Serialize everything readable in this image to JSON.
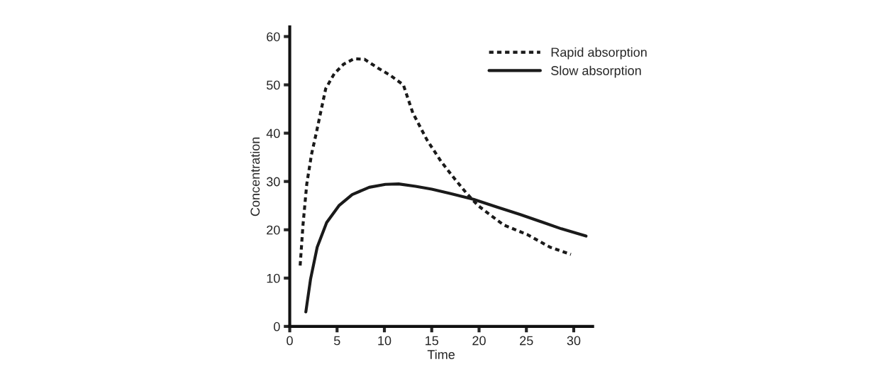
{
  "chart_data": {
    "type": "line",
    "xlabel": "Time",
    "ylabel": "Concentration",
    "xlim": [
      0,
      32
    ],
    "ylim": [
      0,
      62
    ],
    "xticks": [
      0,
      5,
      10,
      15,
      20,
      25,
      30
    ],
    "yticks": [
      0,
      10,
      20,
      30,
      40,
      50,
      60
    ],
    "grid": false,
    "legend": "top right",
    "marker": "none",
    "series": [
      {
        "name": "Rapid absorption",
        "color": "#1a1a1a",
        "line_style": "dotted",
        "x": [
          1.1,
          1.4,
          1.8,
          2.3,
          2.8,
          3.2,
          3.8,
          4.7,
          5.7,
          6.8,
          7.9,
          9.3,
          10.6,
          12,
          13,
          14.5,
          16,
          17.4,
          18.7,
          19.9,
          21.1,
          22.6,
          25.1,
          27.5,
          29.7
        ],
        "values": [
          12.6,
          21,
          29.5,
          35.6,
          40,
          43.7,
          49.2,
          52.3,
          54.3,
          55.4,
          55.3,
          53.5,
          52,
          50,
          44.2,
          38.6,
          34.1,
          30.6,
          27.5,
          25,
          23.2,
          21,
          19,
          16.4,
          14.9
        ]
      },
      {
        "name": "Slow absorption",
        "color": "#1a1a1a",
        "line_style": "solid",
        "x": [
          1.7,
          2.2,
          2.9,
          3.9,
          5.2,
          6.6,
          8.4,
          10.1,
          11.5,
          13.3,
          15,
          17,
          19.4,
          21.9,
          24.3,
          26.8,
          28.7,
          31.3
        ],
        "values": [
          3,
          9.8,
          16.4,
          21.5,
          25,
          27.3,
          28.8,
          29.4,
          29.5,
          29,
          28.4,
          27.5,
          26.3,
          24.7,
          23.2,
          21.5,
          20.2,
          18.7
        ]
      }
    ]
  }
}
